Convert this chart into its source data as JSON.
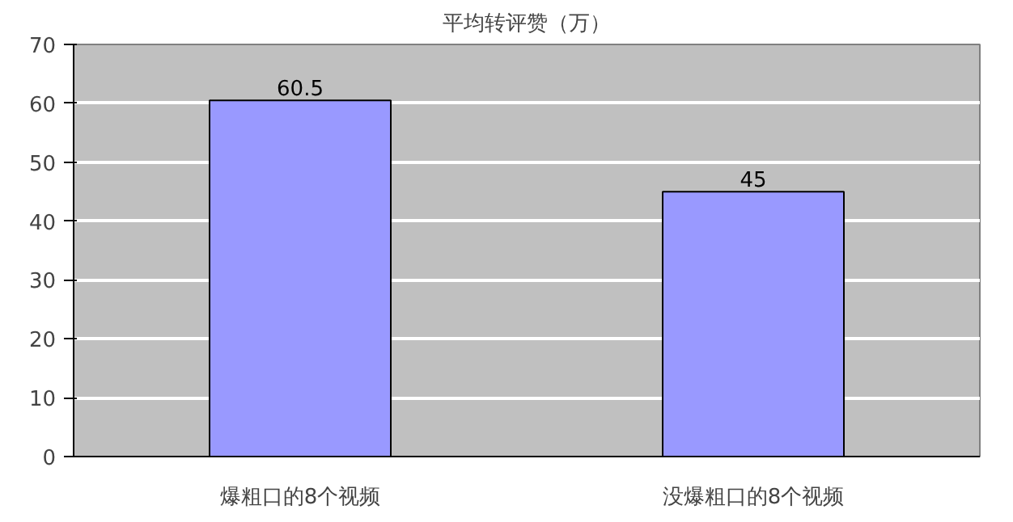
{
  "chart_data": {
    "type": "bar",
    "title": "平均转评赞（万）",
    "categories": [
      "爆粗口的8个视频",
      "没爆粗口的8个视频"
    ],
    "values": [
      60.5,
      45
    ],
    "color": "#9999ff",
    "ylim": [
      0,
      70
    ],
    "yticks": [
      0,
      10,
      20,
      30,
      40,
      50,
      60,
      70
    ],
    "grid": "y",
    "data_labels": true
  }
}
